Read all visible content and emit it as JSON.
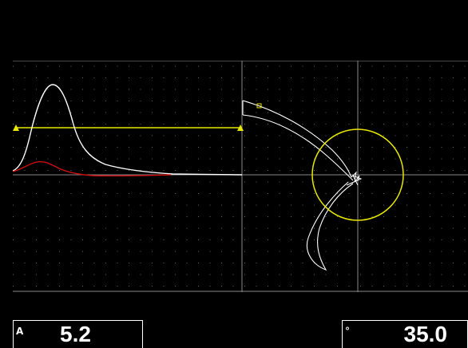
{
  "readouts": {
    "amplitude": {
      "tag": "A",
      "value": "5.2"
    },
    "angle": {
      "tag": "°",
      "value": "35.0"
    }
  },
  "colors": {
    "background": "#000000",
    "grid": "#8a8a8a",
    "dot_grid": "#6a6a6a",
    "trace_primary": "#ffffff",
    "trace_secondary": "#d01010",
    "gate": "#e8e800",
    "alarm_circle": "#e8e800"
  },
  "display": {
    "left_pane": "strip-chart",
    "right_pane": "impedance-plane",
    "alarm_type": "circle"
  }
}
